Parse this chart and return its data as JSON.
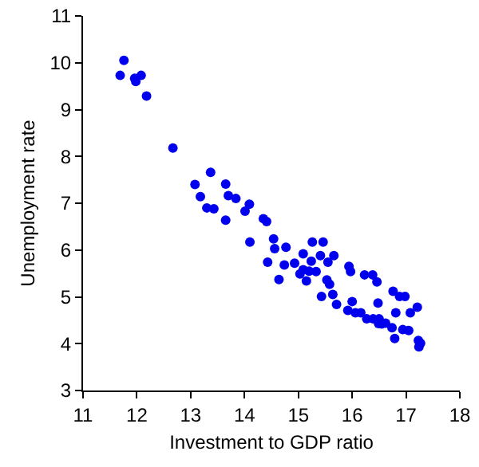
{
  "chart_data": {
    "type": "scatter",
    "xlabel": "Investment to GDP ratio",
    "ylabel": "Unemployment rate",
    "xlim": [
      11,
      18
    ],
    "ylim": [
      3,
      11
    ],
    "xticks": [
      11,
      12,
      13,
      14,
      15,
      16,
      17,
      18
    ],
    "yticks": [
      3,
      4,
      5,
      6,
      7,
      8,
      9,
      10,
      11
    ],
    "grid": false,
    "marker": "circle",
    "series": [
      {
        "color": "#0000ee",
        "x": [
          11.76,
          11.69,
          11.96,
          11.98,
          12.08,
          12.18,
          12.67,
          13.37,
          13.08,
          13.18,
          13.3,
          13.43,
          13.65,
          13.7,
          13.84,
          13.65,
          14.09,
          14.01,
          14.35,
          14.41,
          14.1,
          14.54,
          14.56,
          14.77,
          14.43,
          14.64,
          14.74,
          14.93,
          15.09,
          15.26,
          15.46,
          15.41,
          15.24,
          15.03,
          15.09,
          15.2,
          15.33,
          15.55,
          15.66,
          15.15,
          15.53,
          15.58,
          15.64,
          15.43,
          15.71,
          15.94,
          15.97,
          16.23,
          16.38,
          16.46,
          16.0,
          15.92,
          16.06,
          16.16,
          16.48,
          16.27,
          16.39,
          16.5,
          16.49,
          16.55,
          16.62,
          16.76,
          16.88,
          16.98,
          16.81,
          17.08,
          17.21,
          16.74,
          16.94,
          17.05,
          16.79,
          17.23,
          17.27,
          17.24
        ],
        "values": [
          10.05,
          9.73,
          9.67,
          9.6,
          9.73,
          9.29,
          8.18,
          7.66,
          7.4,
          7.14,
          6.9,
          6.88,
          7.41,
          7.16,
          7.1,
          6.64,
          6.98,
          6.83,
          6.67,
          6.61,
          6.17,
          6.24,
          6.03,
          6.06,
          5.74,
          5.37,
          5.68,
          5.72,
          5.92,
          6.17,
          6.17,
          5.88,
          5.76,
          5.49,
          5.58,
          5.55,
          5.54,
          5.74,
          5.88,
          5.34,
          5.36,
          5.27,
          5.05,
          5.01,
          4.84,
          5.65,
          5.54,
          5.47,
          5.47,
          5.32,
          4.9,
          4.71,
          4.66,
          4.66,
          4.87,
          4.53,
          4.53,
          4.53,
          4.43,
          4.42,
          4.44,
          5.12,
          5.01,
          5.01,
          4.66,
          4.66,
          4.78,
          4.34,
          4.3,
          4.28,
          4.11,
          4.07,
          4.01,
          3.93
        ]
      }
    ]
  }
}
